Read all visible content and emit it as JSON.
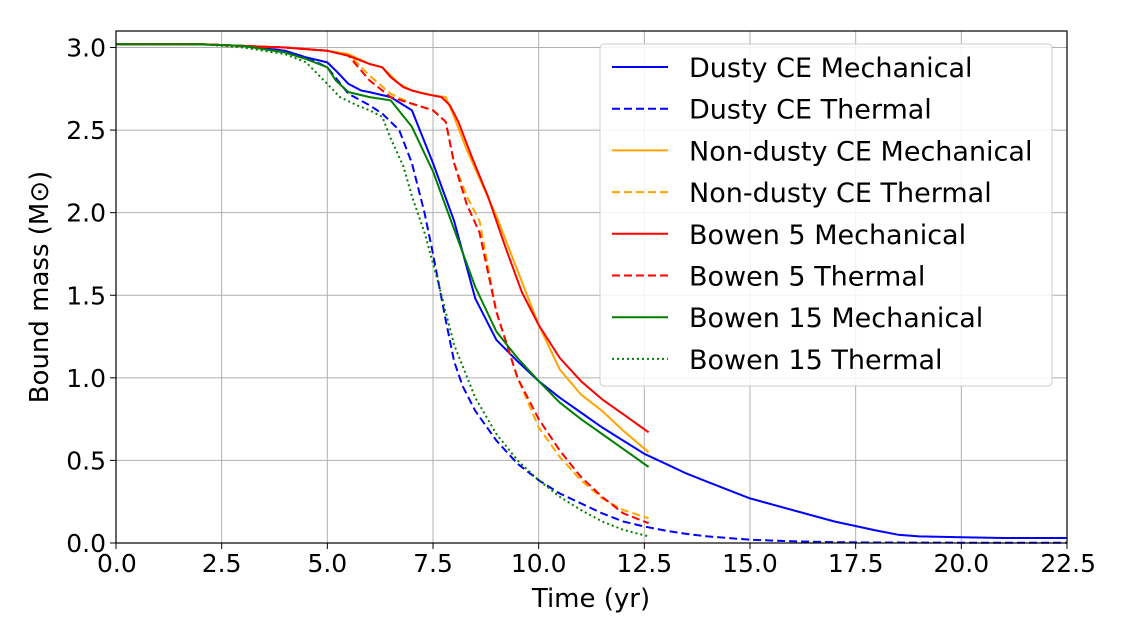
{
  "chart_data": {
    "type": "line",
    "title": "",
    "xlabel": "Time (yr)",
    "ylabel": "Bound mass (M⊙)",
    "xlim": [
      0,
      22.5
    ],
    "ylim": [
      0,
      3.1
    ],
    "grid": true,
    "legend_position": "top-right",
    "xticks": [
      0.0,
      2.5,
      5.0,
      7.5,
      10.0,
      12.5,
      15.0,
      17.5,
      20.0,
      22.5
    ],
    "xtick_labels": [
      "0.0",
      "2.5",
      "5.0",
      "7.5",
      "10.0",
      "12.5",
      "15.0",
      "17.5",
      "20.0",
      "22.5"
    ],
    "yticks": [
      0.0,
      0.5,
      1.0,
      1.5,
      2.0,
      2.5,
      3.0
    ],
    "ytick_labels": [
      "0.0",
      "0.5",
      "1.0",
      "1.5",
      "2.0",
      "2.5",
      "3.0"
    ],
    "series": [
      {
        "name": "Dusty CE Mechanical",
        "color": "#0000ff",
        "dash": "solid",
        "x": [
          0,
          2,
          3,
          4,
          4.5,
          5,
          5.2,
          5.5,
          5.8,
          6,
          6.5,
          7,
          7.5,
          8,
          8.5,
          9,
          9.5,
          10,
          10.5,
          11,
          11.5,
          12,
          12.5,
          13,
          13.5,
          14,
          15,
          16,
          17,
          18,
          18.5,
          19,
          20,
          21,
          22.5
        ],
        "y": [
          3.02,
          3.02,
          3.01,
          2.98,
          2.94,
          2.91,
          2.86,
          2.78,
          2.74,
          2.73,
          2.7,
          2.62,
          2.3,
          1.95,
          1.48,
          1.23,
          1.1,
          0.98,
          0.88,
          0.79,
          0.7,
          0.62,
          0.54,
          0.48,
          0.42,
          0.37,
          0.27,
          0.2,
          0.13,
          0.075,
          0.05,
          0.04,
          0.035,
          0.03,
          0.03
        ]
      },
      {
        "name": "Dusty CE Thermal",
        "color": "#0000ff",
        "dash": "dashed",
        "x": [
          0,
          2,
          3,
          4,
          4.5,
          5,
          5.5,
          6,
          6.3,
          6.5,
          6.7,
          7,
          7.3,
          7.5,
          7.8,
          8,
          8.2,
          8.5,
          9,
          9.5,
          10,
          10.5,
          11,
          11.5,
          12,
          12.5,
          13,
          13.5,
          14,
          15,
          16,
          17,
          18,
          20,
          22.5
        ],
        "y": [
          3.02,
          3.02,
          3.01,
          2.98,
          2.94,
          2.88,
          2.72,
          2.65,
          2.6,
          2.55,
          2.5,
          2.3,
          2.0,
          1.75,
          1.35,
          1.1,
          0.95,
          0.8,
          0.62,
          0.48,
          0.38,
          0.3,
          0.24,
          0.18,
          0.13,
          0.1,
          0.075,
          0.055,
          0.04,
          0.02,
          0.01,
          0.005,
          0.003,
          0.002,
          0.002
        ]
      },
      {
        "name": "Non-dusty CE Mechanical",
        "color": "#ffa500",
        "dash": "solid",
        "x": [
          0,
          2,
          3,
          4,
          5,
          5.5,
          6,
          6.3,
          6.7,
          7,
          7.5,
          7.8,
          8,
          8.3,
          8.7,
          9,
          9.5,
          10,
          10.5,
          11,
          11.5,
          12,
          12.6
        ],
        "y": [
          3.02,
          3.02,
          3.01,
          3.0,
          2.98,
          2.96,
          2.9,
          2.88,
          2.78,
          2.74,
          2.71,
          2.7,
          2.58,
          2.38,
          2.15,
          1.98,
          1.65,
          1.32,
          1.05,
          0.9,
          0.8,
          0.68,
          0.55
        ]
      },
      {
        "name": "Non-dusty CE Thermal",
        "color": "#ffa500",
        "dash": "dashed",
        "x": [
          0,
          2,
          3,
          4,
          5,
          5.5,
          6,
          6.5,
          7,
          7.5,
          7.8,
          8,
          8.3,
          8.6,
          9,
          9.5,
          10,
          10.5,
          11,
          11.5,
          12,
          12.6
        ],
        "y": [
          3.02,
          3.02,
          3.01,
          3.0,
          2.98,
          2.96,
          2.83,
          2.72,
          2.66,
          2.62,
          2.55,
          2.3,
          2.1,
          1.95,
          1.4,
          1.0,
          0.7,
          0.52,
          0.38,
          0.27,
          0.2,
          0.15
        ]
      },
      {
        "name": "Bowen 5 Mechanical",
        "color": "#ff0000",
        "dash": "solid",
        "x": [
          0,
          2,
          3,
          4,
          5,
          5.5,
          5.8,
          6,
          6.3,
          6.5,
          6.8,
          7,
          7.3,
          7.7,
          7.9,
          8.1,
          8.4,
          8.8,
          9.2,
          9.6,
          10,
          10.5,
          11,
          11.5,
          12,
          12.6
        ],
        "y": [
          3.02,
          3.02,
          3.01,
          3.0,
          2.98,
          2.95,
          2.92,
          2.9,
          2.88,
          2.82,
          2.76,
          2.74,
          2.72,
          2.7,
          2.65,
          2.55,
          2.35,
          2.1,
          1.8,
          1.52,
          1.32,
          1.12,
          0.98,
          0.87,
          0.78,
          0.67
        ]
      },
      {
        "name": "Bowen 5 Thermal",
        "color": "#ff0000",
        "dash": "dashed",
        "x": [
          0,
          2,
          3,
          4,
          5,
          5.5,
          6,
          6.5,
          7,
          7.5,
          7.8,
          8,
          8.3,
          8.6,
          9,
          9.5,
          10,
          10.5,
          11,
          11.5,
          12,
          12.6
        ],
        "y": [
          3.02,
          3.02,
          3.01,
          3.0,
          2.98,
          2.95,
          2.8,
          2.7,
          2.66,
          2.62,
          2.55,
          2.3,
          2.05,
          1.88,
          1.4,
          1.0,
          0.75,
          0.56,
          0.4,
          0.28,
          0.18,
          0.12
        ]
      },
      {
        "name": "Bowen 15 Mechanical",
        "color": "#008000",
        "dash": "solid",
        "x": [
          0,
          2,
          3,
          4,
          4.5,
          5,
          5.2,
          5.5,
          6,
          6.5,
          7,
          7.5,
          8,
          8.5,
          9,
          9.5,
          10,
          10.5,
          11,
          11.5,
          12,
          12.6
        ],
        "y": [
          3.02,
          3.02,
          3.01,
          2.97,
          2.93,
          2.88,
          2.8,
          2.73,
          2.7,
          2.68,
          2.52,
          2.25,
          1.9,
          1.55,
          1.28,
          1.12,
          0.98,
          0.85,
          0.75,
          0.66,
          0.57,
          0.46
        ]
      },
      {
        "name": "Bowen 15 Thermal",
        "color": "#008000",
        "dash": "dotted",
        "x": [
          0,
          2,
          3,
          4,
          4.5,
          5,
          5.3,
          5.7,
          6,
          6.3,
          6.5,
          6.8,
          7,
          7.3,
          7.6,
          8,
          8.5,
          9,
          9.5,
          10,
          10.5,
          11,
          11.5,
          12,
          12.6
        ],
        "y": [
          3.02,
          3.02,
          3.0,
          2.96,
          2.91,
          2.78,
          2.7,
          2.65,
          2.62,
          2.58,
          2.45,
          2.28,
          2.1,
          1.88,
          1.6,
          1.2,
          0.88,
          0.66,
          0.5,
          0.38,
          0.28,
          0.2,
          0.13,
          0.08,
          0.04
        ]
      }
    ]
  }
}
